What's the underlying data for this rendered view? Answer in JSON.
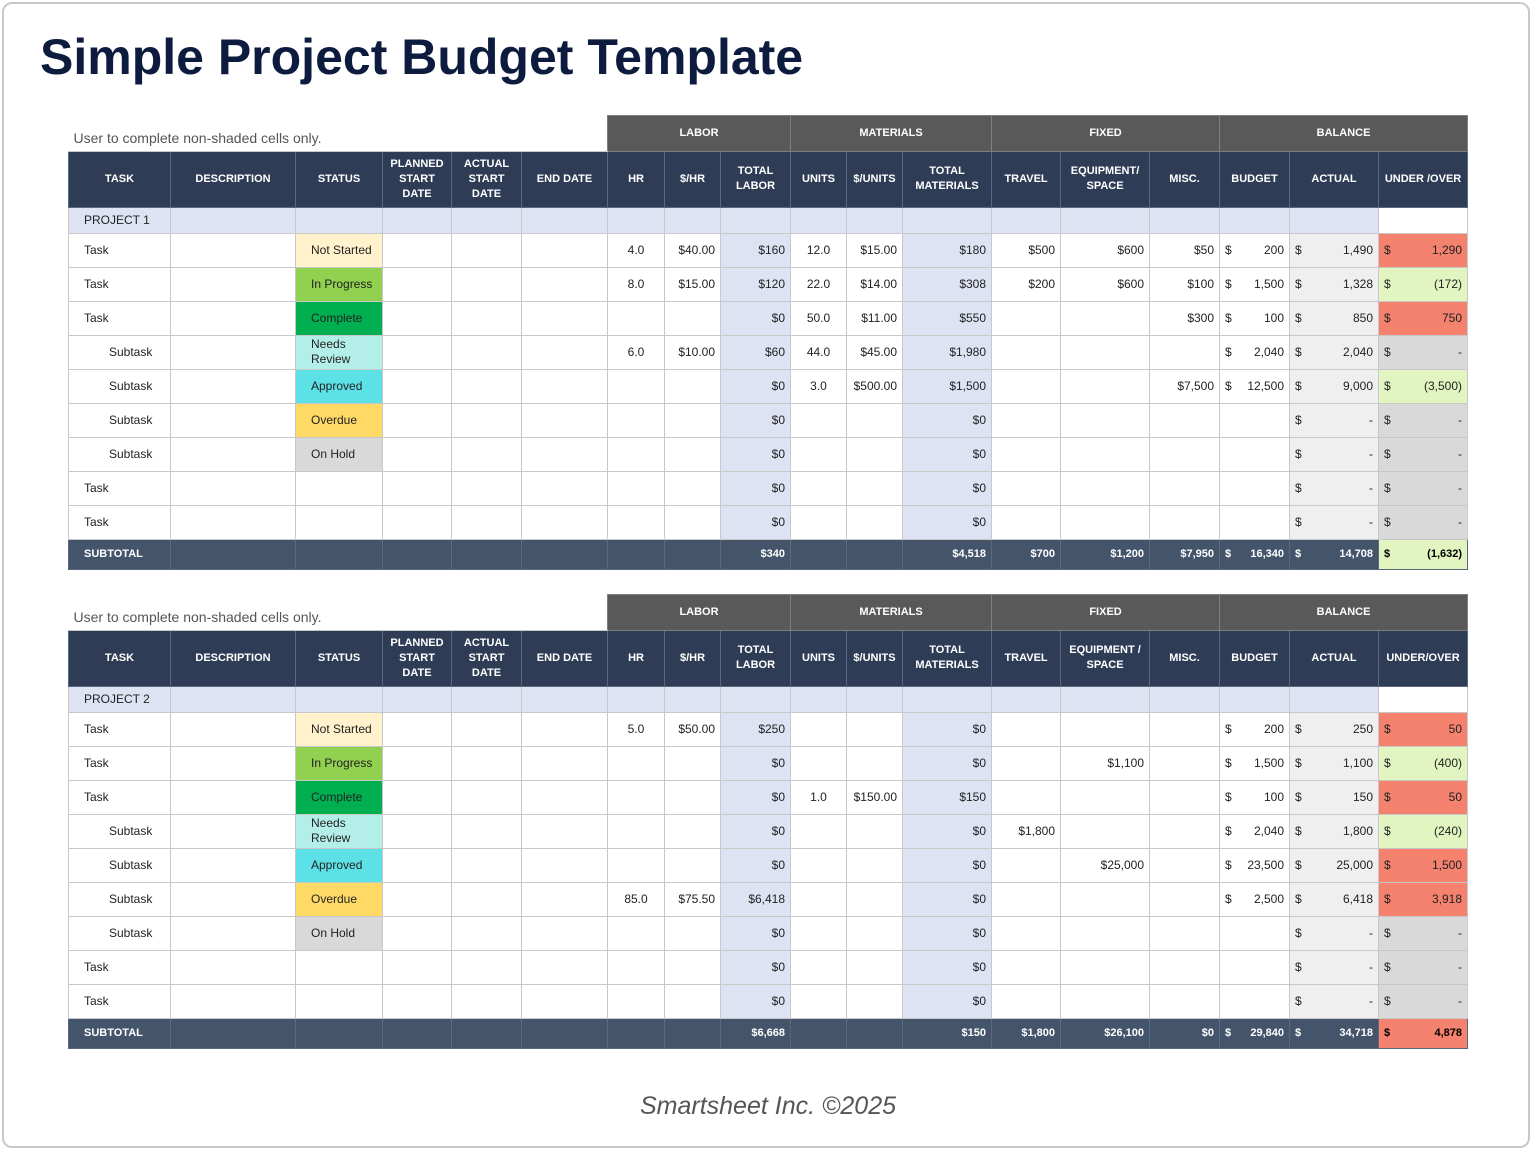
{
  "title": "Simple Project Budget Template",
  "footer": "Smartsheet Inc. ©2025",
  "tables": [
    {
      "note": "User to complete non-shaded cells only.",
      "groups": [
        "LABOR",
        "MATERIALS",
        "FIXED",
        "BALANCE"
      ],
      "columns": [
        "TASK",
        "DESCRIPTION",
        "STATUS",
        "PLANNED START DATE",
        "ACTUAL START DATE",
        "END DATE",
        "HR",
        "$/HR",
        "TOTAL LABOR",
        "UNITS",
        "$/UNITS",
        "TOTAL MATERIALS",
        "TRAVEL",
        "EQUIPMENT/ SPACE",
        "MISC.",
        "BUDGET",
        "ACTUAL",
        "UNDER /OVER"
      ],
      "project": "PROJECT 1",
      "rows": [
        {
          "level": 1,
          "status_color": "#fff2cc",
          "variance_color": "#f4826f",
          "cells": [
            "Task",
            null,
            "Not Started",
            null,
            null,
            null,
            "4.0",
            "$40.00",
            "$160",
            "12.0",
            "$15.00",
            "$180",
            "$500",
            "$600",
            "$50",
            [
              "$",
              "200"
            ],
            [
              "$",
              "1,490"
            ],
            [
              "$",
              "1,290"
            ]
          ]
        },
        {
          "level": 1,
          "status_color": "#92d050",
          "variance_color": "#e2f5c0",
          "cells": [
            "Task",
            null,
            "In Progress",
            null,
            null,
            null,
            "8.0",
            "$15.00",
            "$120",
            "22.0",
            "$14.00",
            "$308",
            "$200",
            "$600",
            "$100",
            [
              "$",
              "1,500"
            ],
            [
              "$",
              "1,328"
            ],
            [
              "$",
              "(172)"
            ]
          ]
        },
        {
          "level": 1,
          "status_color": "#00b050",
          "variance_color": "#f4826f",
          "cells": [
            "Task",
            null,
            "Complete",
            null,
            null,
            null,
            null,
            null,
            "$0",
            "50.0",
            "$11.00",
            "$550",
            null,
            null,
            "$300",
            [
              "$",
              "100"
            ],
            [
              "$",
              "850"
            ],
            [
              "$",
              "750"
            ]
          ]
        },
        {
          "level": 2,
          "status_color": "#b4eee8",
          "variance_color": "#d9d9d9",
          "cells": [
            "Subtask",
            null,
            "Needs Review",
            null,
            null,
            null,
            "6.0",
            "$10.00",
            "$60",
            "44.0",
            "$45.00",
            "$1,980",
            null,
            null,
            null,
            [
              "$",
              "2,040"
            ],
            [
              "$",
              "2,040"
            ],
            [
              "$",
              "-"
            ]
          ]
        },
        {
          "level": 2,
          "status_color": "#5ce1e6",
          "variance_color": "#e2f5c0",
          "cells": [
            "Subtask",
            null,
            "Approved",
            null,
            null,
            null,
            null,
            null,
            "$0",
            "3.0",
            "$500.00",
            "$1,500",
            null,
            null,
            "$7,500",
            [
              "$",
              "12,500"
            ],
            [
              "$",
              "9,000"
            ],
            [
              "$",
              "(3,500)"
            ]
          ]
        },
        {
          "level": 2,
          "status_color": "#ffd966",
          "variance_color": "#d9d9d9",
          "cells": [
            "Subtask",
            null,
            "Overdue",
            null,
            null,
            null,
            null,
            null,
            "$0",
            null,
            null,
            "$0",
            null,
            null,
            null,
            null,
            [
              "$",
              "-"
            ],
            [
              "$",
              "-"
            ]
          ]
        },
        {
          "level": 2,
          "status_color": "#d9d9d9",
          "variance_color": "#d9d9d9",
          "cells": [
            "Subtask",
            null,
            "On Hold",
            null,
            null,
            null,
            null,
            null,
            "$0",
            null,
            null,
            "$0",
            null,
            null,
            null,
            null,
            [
              "$",
              "-"
            ],
            [
              "$",
              "-"
            ]
          ]
        },
        {
          "level": 1,
          "variance_color": "#d9d9d9",
          "cells": [
            "Task",
            null,
            null,
            null,
            null,
            null,
            null,
            null,
            "$0",
            null,
            null,
            "$0",
            null,
            null,
            null,
            null,
            [
              "$",
              "-"
            ],
            [
              "$",
              "-"
            ]
          ]
        },
        {
          "level": 1,
          "variance_color": "#d9d9d9",
          "cells": [
            "Task",
            null,
            null,
            null,
            null,
            null,
            null,
            null,
            "$0",
            null,
            null,
            "$0",
            null,
            null,
            null,
            null,
            [
              "$",
              "-"
            ],
            [
              "$",
              "-"
            ]
          ]
        }
      ],
      "subtotal_color": "#e2f5c0",
      "subtotal": [
        "SUBTOTAL",
        null,
        null,
        null,
        null,
        null,
        null,
        null,
        "$340",
        null,
        null,
        "$4,518",
        "$700",
        "$1,200",
        "$7,950",
        [
          "$",
          "16,340"
        ],
        [
          "$",
          "14,708"
        ],
        [
          "$",
          "(1,632)"
        ]
      ]
    },
    {
      "note": "User to complete non-shaded cells only.",
      "groups": [
        "LABOR",
        "MATERIALS",
        "FIXED",
        "BALANCE"
      ],
      "columns": [
        "TASK",
        "DESCRIPTION",
        "STATUS",
        "PLANNED START DATE",
        "ACTUAL START DATE",
        "END DATE",
        "HR",
        "$/HR",
        "TOTAL LABOR",
        "UNITS",
        "$/UNITS",
        "TOTAL MATERIALS",
        "TRAVEL",
        "EQUIPMENT / SPACE",
        "MISC.",
        "BUDGET",
        "ACTUAL",
        "UNDER/OVER"
      ],
      "project": "PROJECT 2",
      "rows": [
        {
          "level": 1,
          "status_color": "#fff2cc",
          "variance_color": "#f4826f",
          "cells": [
            "Task",
            null,
            "Not Started",
            null,
            null,
            null,
            "5.0",
            "$50.00",
            "$250",
            null,
            null,
            "$0",
            null,
            null,
            null,
            [
              "$",
              "200"
            ],
            [
              "$",
              "250"
            ],
            [
              "$",
              "50"
            ]
          ]
        },
        {
          "level": 1,
          "status_color": "#92d050",
          "variance_color": "#e2f5c0",
          "cells": [
            "Task",
            null,
            "In Progress",
            null,
            null,
            null,
            null,
            null,
            "$0",
            null,
            null,
            "$0",
            null,
            "$1,100",
            null,
            [
              "$",
              "1,500"
            ],
            [
              "$",
              "1,100"
            ],
            [
              "$",
              "(400)"
            ]
          ]
        },
        {
          "level": 1,
          "status_color": "#00b050",
          "variance_color": "#f4826f",
          "cells": [
            "Task",
            null,
            "Complete",
            null,
            null,
            null,
            null,
            null,
            "$0",
            "1.0",
            "$150.00",
            "$150",
            null,
            null,
            null,
            [
              "$",
              "100"
            ],
            [
              "$",
              "150"
            ],
            [
              "$",
              "50"
            ]
          ]
        },
        {
          "level": 2,
          "status_color": "#b4eee8",
          "variance_color": "#e2f5c0",
          "cells": [
            "Subtask",
            null,
            "Needs Review",
            null,
            null,
            null,
            null,
            null,
            "$0",
            null,
            null,
            "$0",
            "$1,800",
            null,
            null,
            [
              "$",
              "2,040"
            ],
            [
              "$",
              "1,800"
            ],
            [
              "$",
              "(240)"
            ]
          ]
        },
        {
          "level": 2,
          "status_color": "#5ce1e6",
          "variance_color": "#f4826f",
          "cells": [
            "Subtask",
            null,
            "Approved",
            null,
            null,
            null,
            null,
            null,
            "$0",
            null,
            null,
            "$0",
            null,
            "$25,000",
            null,
            [
              "$",
              "23,500"
            ],
            [
              "$",
              "25,000"
            ],
            [
              "$",
              "1,500"
            ]
          ]
        },
        {
          "level": 2,
          "status_color": "#ffd966",
          "variance_color": "#f4826f",
          "cells": [
            "Subtask",
            null,
            "Overdue",
            null,
            null,
            null,
            "85.0",
            "$75.50",
            "$6,418",
            null,
            null,
            "$0",
            null,
            null,
            null,
            [
              "$",
              "2,500"
            ],
            [
              "$",
              "6,418"
            ],
            [
              "$",
              "3,918"
            ]
          ]
        },
        {
          "level": 2,
          "status_color": "#d9d9d9",
          "variance_color": "#d9d9d9",
          "cells": [
            "Subtask",
            null,
            "On Hold",
            null,
            null,
            null,
            null,
            null,
            "$0",
            null,
            null,
            "$0",
            null,
            null,
            null,
            null,
            [
              "$",
              "-"
            ],
            [
              "$",
              "-"
            ]
          ]
        },
        {
          "level": 1,
          "variance_color": "#d9d9d9",
          "cells": [
            "Task",
            null,
            null,
            null,
            null,
            null,
            null,
            null,
            "$0",
            null,
            null,
            "$0",
            null,
            null,
            null,
            null,
            [
              "$",
              "-"
            ],
            [
              "$",
              "-"
            ]
          ]
        },
        {
          "level": 1,
          "variance_color": "#d9d9d9",
          "cells": [
            "Task",
            null,
            null,
            null,
            null,
            null,
            null,
            null,
            "$0",
            null,
            null,
            "$0",
            null,
            null,
            null,
            null,
            [
              "$",
              "-"
            ],
            [
              "$",
              "-"
            ]
          ]
        }
      ],
      "subtotal_color": "#f4826f",
      "subtotal": [
        "SUBTOTAL",
        null,
        null,
        null,
        null,
        null,
        null,
        null,
        "$6,668",
        null,
        null,
        "$150",
        "$1,800",
        "$26,100",
        "$0",
        [
          "$",
          "29,840"
        ],
        [
          "$",
          "34,718"
        ],
        [
          "$",
          "4,878"
        ]
      ]
    }
  ]
}
